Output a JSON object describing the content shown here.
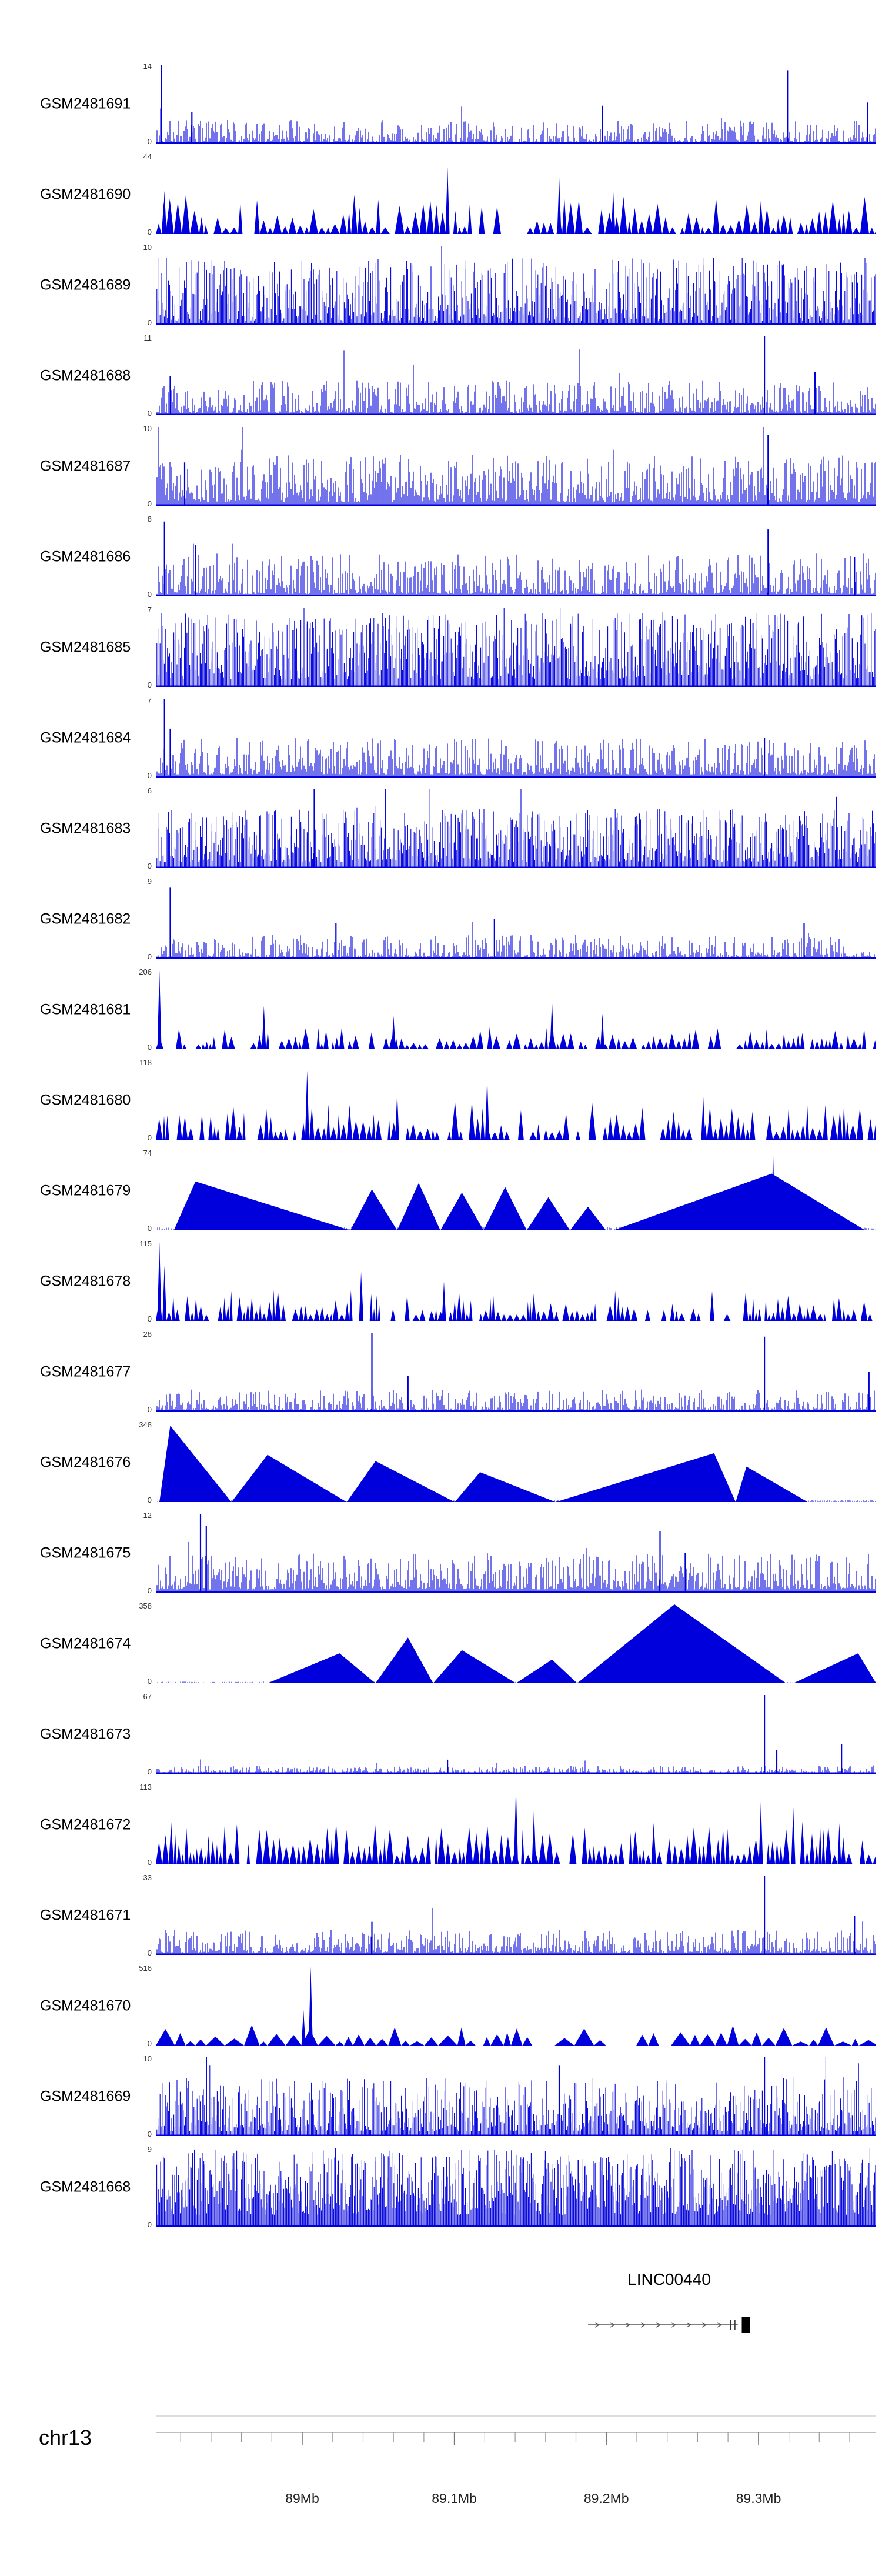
{
  "chart_data": {
    "type": "genome-coverage-tracks",
    "title": "",
    "region": {
      "chromosome": "chr13"
    },
    "gene": {
      "name": "LINC00440",
      "span": [
        0.6,
        0.808
      ],
      "exon_ticks": [
        0.798,
        0.804
      ],
      "box": [
        0.8135,
        0.825
      ]
    },
    "x_ticks": [
      {
        "label": "89Mb",
        "f": 0.2033
      },
      {
        "label": "89.1Mb",
        "f": 0.4144
      },
      {
        "label": "89.2Mb",
        "f": 0.6255
      },
      {
        "label": "89.3Mb",
        "f": 0.8367
      }
    ],
    "ruler": {
      "minor_step_frac": 0.04222
    },
    "colors": {
      "signal": "#0000dd",
      "axis": "#999999",
      "axis_light": "#bbbbbb",
      "text": "#222222",
      "gene": "#555555"
    },
    "tracks": [
      {
        "name": "GSM2481691",
        "ymax": "14",
        "ymin": "0",
        "seed": 1,
        "bars": {
          "step": 2,
          "min": 0.02,
          "max": 0.3,
          "pow": 2.6,
          "tallP": 0.03,
          "tallMul": 2.0
        },
        "spikes": [
          [
            0.008,
            1.0
          ],
          [
            0.05,
            0.4
          ],
          [
            0.62,
            0.48
          ],
          [
            0.877,
            0.93
          ],
          [
            0.988,
            0.52
          ]
        ]
      },
      {
        "name": "GSM2481690",
        "ymax": "44",
        "ymin": "0",
        "seed": 2,
        "tri": {
          "bmin": 6,
          "bmax": 16,
          "min": 0.08,
          "max": 0.5,
          "pow": 1.8,
          "gapP": 0.12
        },
        "spikes": [
          [
            0.012,
            0.55
          ],
          [
            0.405,
            0.85
          ],
          [
            0.56,
            0.72
          ],
          [
            0.635,
            0.55
          ]
        ]
      },
      {
        "name": "GSM2481689",
        "ymax": "10",
        "ymin": "0",
        "seed": 3,
        "bars": {
          "step": 1.8,
          "min": 0.05,
          "max": 0.85,
          "pow": 1.5
        }
      },
      {
        "name": "GSM2481688",
        "ymax": "11",
        "ymin": "0",
        "seed": 4,
        "bars": {
          "step": 2,
          "min": 0.03,
          "max": 0.45,
          "pow": 2.4
        },
        "spikes": [
          [
            0.02,
            0.5
          ],
          [
            0.845,
            1.0
          ],
          [
            0.915,
            0.55
          ]
        ]
      },
      {
        "name": "GSM2481687",
        "ymax": "10",
        "ymin": "0",
        "seed": 5,
        "bars": {
          "step": 2,
          "min": 0.05,
          "max": 0.65,
          "pow": 1.9
        },
        "spikes": [
          [
            0.04,
            0.55
          ],
          [
            0.85,
            0.9
          ]
        ]
      },
      {
        "name": "GSM2481686",
        "ymax": "8",
        "ymin": "0",
        "seed": 6,
        "bars": {
          "step": 2,
          "min": 0.03,
          "max": 0.55,
          "pow": 2.2
        },
        "spikes": [
          [
            0.012,
            0.95
          ],
          [
            0.055,
            0.65
          ],
          [
            0.85,
            0.85
          ],
          [
            0.97,
            0.5
          ]
        ]
      },
      {
        "name": "GSM2481685",
        "ymax": "7",
        "ymin": "0",
        "seed": 7,
        "bars": {
          "step": 1.8,
          "min": 0.1,
          "max": 0.95,
          "pow": 1.35
        }
      },
      {
        "name": "GSM2481684",
        "ymax": "7",
        "ymin": "0",
        "seed": 8,
        "bars": {
          "step": 2,
          "min": 0.04,
          "max": 0.5,
          "pow": 2.2
        },
        "spikes": [
          [
            0.012,
            1.0
          ],
          [
            0.02,
            0.62
          ],
          [
            0.845,
            0.5
          ]
        ]
      },
      {
        "name": "GSM2481683",
        "ymax": "6",
        "ymin": "0",
        "seed": 9,
        "bars": {
          "step": 1.8,
          "min": 0.08,
          "max": 0.75,
          "pow": 1.6
        },
        "spikes": [
          [
            0.22,
            1.0
          ]
        ]
      },
      {
        "name": "GSM2481682",
        "ymax": "9",
        "ymin": "0",
        "seed": 10,
        "bars": {
          "step": 2,
          "min": 0.02,
          "max": 0.3,
          "pow": 2.8
        },
        "spikes": [
          [
            0.02,
            0.9
          ],
          [
            0.25,
            0.45
          ],
          [
            0.47,
            0.5
          ],
          [
            0.9,
            0.45
          ]
        ]
      },
      {
        "name": "GSM2481681",
        "ymax": "206",
        "ymin": "0",
        "seed": 11,
        "tri": {
          "bmin": 5,
          "bmax": 14,
          "min": 0.06,
          "max": 0.28,
          "pow": 1.8,
          "gapP": 0.2
        },
        "spikes": [
          [
            0.005,
            1.0
          ],
          [
            0.15,
            0.55
          ],
          [
            0.33,
            0.42
          ],
          [
            0.55,
            0.62
          ],
          [
            0.62,
            0.45
          ]
        ]
      },
      {
        "name": "GSM2481680",
        "ymax": "118",
        "ymin": "0",
        "seed": 12,
        "tri": {
          "bmin": 5,
          "bmax": 13,
          "min": 0.1,
          "max": 0.5,
          "pow": 1.6,
          "gapP": 0.18
        },
        "spikes": [
          [
            0.21,
            0.88
          ],
          [
            0.335,
            0.6
          ],
          [
            0.46,
            0.8
          ],
          [
            0.76,
            0.55
          ]
        ]
      },
      {
        "name": "GSM2481679",
        "ymax": "74",
        "ymin": "0",
        "seed": 13,
        "noise": {
          "min": 0.005,
          "max": 0.04
        },
        "triangles": [
          [
            0.025,
            0.055,
            0.27,
            0.62
          ],
          [
            0.27,
            0.3,
            0.335,
            0.52
          ],
          [
            0.335,
            0.365,
            0.395,
            0.6
          ],
          [
            0.395,
            0.425,
            0.455,
            0.48
          ],
          [
            0.455,
            0.485,
            0.515,
            0.55
          ],
          [
            0.515,
            0.545,
            0.575,
            0.42
          ],
          [
            0.575,
            0.6,
            0.625,
            0.3
          ],
          [
            0.635,
            0.855,
            0.985,
            0.72
          ]
        ],
        "spikes": [
          [
            0.857,
            1.0
          ]
        ]
      },
      {
        "name": "GSM2481678",
        "ymax": "115",
        "ymin": "0",
        "seed": 14,
        "tri": {
          "bmin": 4,
          "bmax": 12,
          "min": 0.08,
          "max": 0.4,
          "pow": 1.8,
          "gapP": 0.22
        },
        "spikes": [
          [
            0.005,
            1.0
          ],
          [
            0.012,
            0.7
          ],
          [
            0.285,
            0.62
          ],
          [
            0.4,
            0.5
          ]
        ]
      },
      {
        "name": "GSM2481677",
        "ymax": "28",
        "ymin": "0",
        "seed": 15,
        "bars": {
          "step": 2,
          "min": 0.02,
          "max": 0.28,
          "pow": 2.8
        },
        "spikes": [
          [
            0.3,
            1.0
          ],
          [
            0.35,
            0.45
          ],
          [
            0.845,
            0.95
          ],
          [
            0.99,
            0.5
          ]
        ]
      },
      {
        "name": "GSM2481676",
        "ymax": "348",
        "ymin": "0",
        "seed": 16,
        "noise": {
          "min": 0.004,
          "max": 0.03
        },
        "triangles": [
          [
            0.005,
            0.02,
            0.105,
            0.97
          ],
          [
            0.105,
            0.155,
            0.265,
            0.6
          ],
          [
            0.265,
            0.305,
            0.415,
            0.52
          ],
          [
            0.415,
            0.45,
            0.555,
            0.38
          ],
          [
            0.555,
            0.775,
            0.805,
            0.62
          ],
          [
            0.805,
            0.82,
            0.905,
            0.45
          ]
        ]
      },
      {
        "name": "GSM2481675",
        "ymax": "12",
        "ymin": "0",
        "seed": 17,
        "bars": {
          "step": 2,
          "min": 0.04,
          "max": 0.5,
          "pow": 2.2
        },
        "spikes": [
          [
            0.062,
            1.0
          ],
          [
            0.07,
            0.85
          ],
          [
            0.7,
            0.78
          ],
          [
            0.735,
            0.5
          ]
        ]
      },
      {
        "name": "GSM2481674",
        "ymax": "358",
        "ymin": "0",
        "seed": 18,
        "noise": {
          "min": 0.003,
          "max": 0.02
        },
        "triangles": [
          [
            0.155,
            0.255,
            0.305,
            0.38
          ],
          [
            0.305,
            0.35,
            0.385,
            0.58
          ],
          [
            0.385,
            0.425,
            0.5,
            0.42
          ],
          [
            0.5,
            0.55,
            0.585,
            0.3
          ],
          [
            0.585,
            0.72,
            0.875,
            1.0
          ],
          [
            0.885,
            0.975,
            1.0,
            0.38
          ]
        ]
      },
      {
        "name": "GSM2481673",
        "ymax": "67",
        "ymin": "0",
        "seed": 19,
        "bars": {
          "step": 2,
          "min": 0.01,
          "max": 0.1,
          "pow": 2.6
        },
        "spikes": [
          [
            0.405,
            0.18
          ],
          [
            0.845,
            1.0
          ],
          [
            0.862,
            0.3
          ],
          [
            0.952,
            0.38
          ]
        ]
      },
      {
        "name": "GSM2481672",
        "ymax": "113",
        "ymin": "0",
        "seed": 20,
        "tri": {
          "bmin": 5,
          "bmax": 13,
          "min": 0.12,
          "max": 0.55,
          "pow": 1.5,
          "gapP": 0.12
        },
        "spikes": [
          [
            0.5,
            1.0
          ],
          [
            0.525,
            0.7
          ],
          [
            0.84,
            0.8
          ],
          [
            0.885,
            0.72
          ]
        ]
      },
      {
        "name": "GSM2481671",
        "ymax": "33",
        "ymin": "0",
        "seed": 21,
        "bars": {
          "step": 2,
          "min": 0.03,
          "max": 0.32,
          "pow": 2.4
        },
        "spikes": [
          [
            0.3,
            0.42
          ],
          [
            0.845,
            1.0
          ],
          [
            0.97,
            0.5
          ]
        ]
      },
      {
        "name": "GSM2481670",
        "ymax": "516",
        "ymin": "0",
        "seed": 22,
        "tri": {
          "bmin": 12,
          "bmax": 34,
          "min": 0.05,
          "max": 0.26,
          "pow": 1.6,
          "gapP": 0.15
        },
        "spikes": [
          [
            0.205,
            0.45
          ],
          [
            0.215,
            1.0
          ]
        ]
      },
      {
        "name": "GSM2481669",
        "ymax": "10",
        "ymin": "0",
        "seed": 23,
        "bars": {
          "step": 1.8,
          "min": 0.06,
          "max": 0.75,
          "pow": 1.7
        },
        "spikes": [
          [
            0.56,
            0.9
          ],
          [
            0.845,
            1.0
          ]
        ]
      },
      {
        "name": "GSM2481668",
        "ymax": "9",
        "ymin": "0",
        "seed": 24,
        "bars": {
          "step": 1.6,
          "min": 0.15,
          "max": 0.98,
          "pow": 1.25
        }
      }
    ]
  }
}
